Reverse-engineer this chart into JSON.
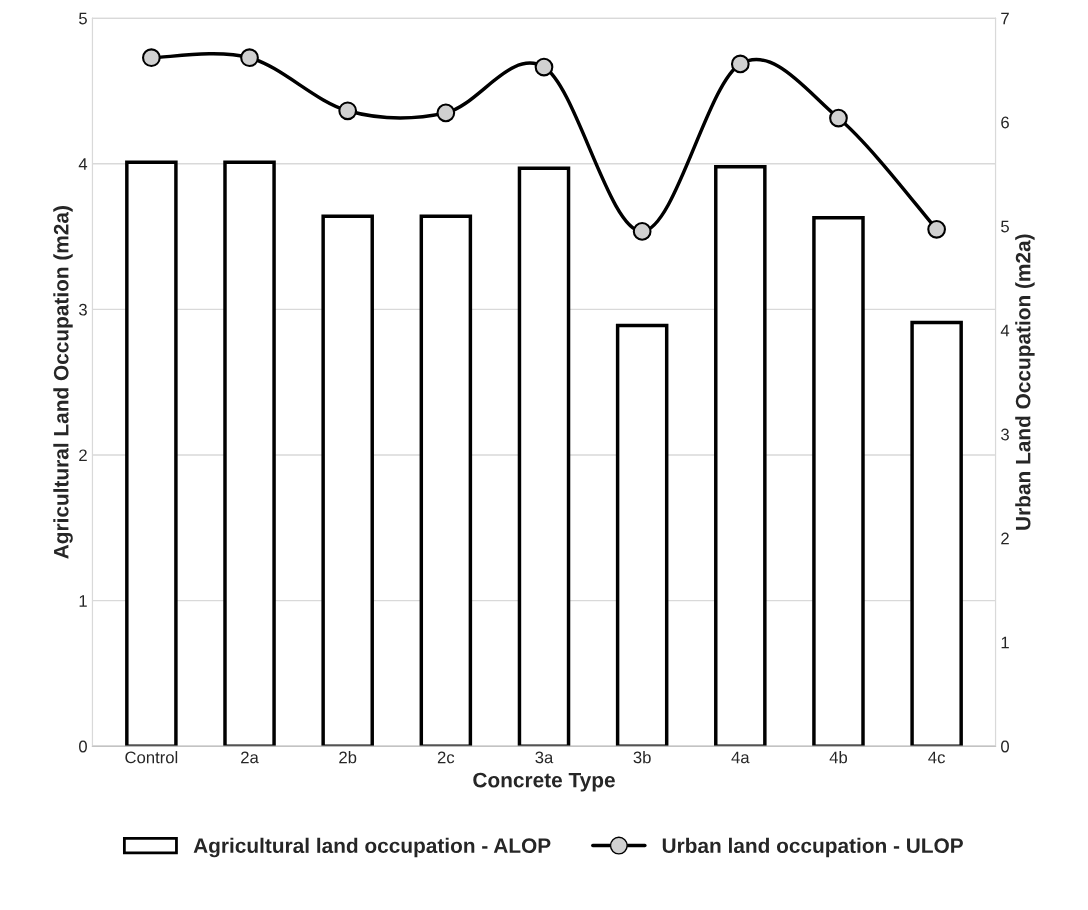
{
  "chart_data": {
    "type": "bar",
    "xlabel": "Concrete Type",
    "ylabel": "Agricultural Land Occupation (m2a)",
    "y2label": "Urban Land Occupation (m2a)",
    "categories": [
      "Control",
      "2a",
      "2b",
      "2c",
      "3a",
      "3b",
      "4a",
      "4b",
      "4c"
    ],
    "series": [
      {
        "name": "Agricultural land occupation - ALOP",
        "color": "#ffffff",
        "values": [
          4.01,
          4.01,
          3.64,
          3.64,
          3.97,
          2.89,
          3.98,
          3.63,
          2.91
        ]
      },
      {
        "name": "Urban land occupation - ULOP",
        "type": "line",
        "axis": "y2",
        "color": "#000000",
        "marker": "circle",
        "values": [
          6.62,
          6.62,
          6.11,
          6.09,
          6.53,
          4.95,
          6.56,
          6.04,
          4.97
        ]
      }
    ],
    "ylim": [
      0,
      5
    ],
    "yticks": [
      0,
      1,
      2,
      3,
      4,
      5
    ],
    "y2lim": [
      0,
      7
    ],
    "y2ticks": [
      0,
      1,
      2,
      3,
      4,
      5,
      6,
      7
    ],
    "grid": "y",
    "legend": "bottom"
  }
}
